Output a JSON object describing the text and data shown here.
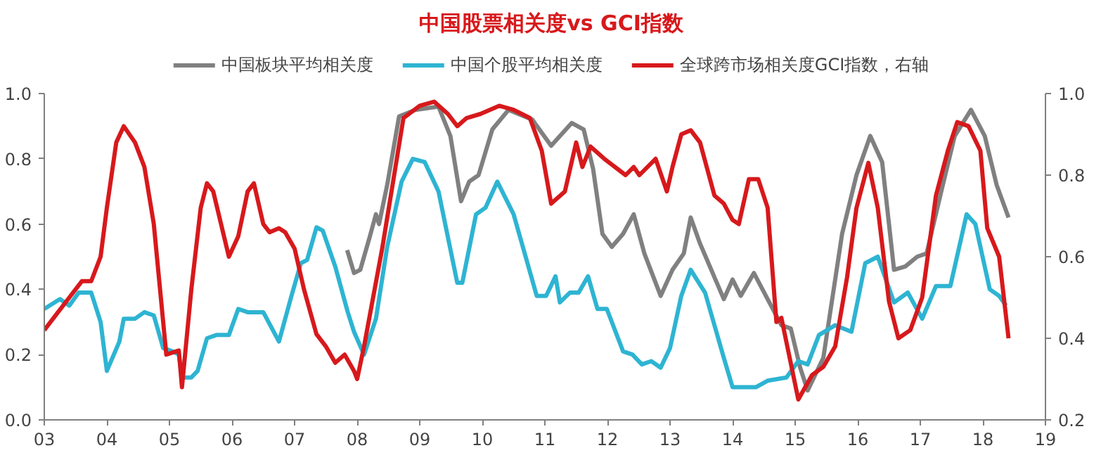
{
  "chart_data": {
    "type": "line",
    "title": "中国股票相关度vs GCI指数",
    "xlim": [
      2003,
      2019
    ],
    "xticks": [
      {
        "value": 2003,
        "label": "03"
      },
      {
        "value": 2004,
        "label": "04"
      },
      {
        "value": 2005,
        "label": "05"
      },
      {
        "value": 2006,
        "label": "06"
      },
      {
        "value": 2007,
        "label": "07"
      },
      {
        "value": 2008,
        "label": "08"
      },
      {
        "value": 2009,
        "label": "09"
      },
      {
        "value": 2010,
        "label": "10"
      },
      {
        "value": 2011,
        "label": "11"
      },
      {
        "value": 2012,
        "label": "12"
      },
      {
        "value": 2013,
        "label": "13"
      },
      {
        "value": 2014,
        "label": "14"
      },
      {
        "value": 2015,
        "label": "15"
      },
      {
        "value": 2016,
        "label": "16"
      },
      {
        "value": 2017,
        "label": "17"
      },
      {
        "value": 2018,
        "label": "18"
      },
      {
        "value": 2019,
        "label": "19"
      }
    ],
    "ylim": [
      0,
      1
    ],
    "yticks": [
      {
        "value": 0,
        "label": "0.0"
      },
      {
        "value": 0.2,
        "label": "0.2"
      },
      {
        "value": 0.4,
        "label": "0.4"
      },
      {
        "value": 0.6,
        "label": "0.6"
      },
      {
        "value": 0.8,
        "label": "0.8"
      },
      {
        "value": 1,
        "label": "1.0"
      }
    ],
    "y2lim": [
      0.2,
      1
    ],
    "y2ticks": [
      0.2,
      0.4,
      0.6,
      0.8,
      {
        "value": 1,
        "label": "1.0"
      }
    ],
    "legend": "top",
    "grid": false,
    "marker": "none",
    "line_style": "solid",
    "series": [
      {
        "name": "中国板块平均相关度",
        "color": "#808080",
        "x": [
          2007.84,
          2007.95,
          2008.05,
          2008.2,
          2008.3,
          2008.35,
          2008.48,
          2008.67,
          2008.93,
          2009.3,
          2009.49,
          2009.66,
          2009.79,
          2009.94,
          2010.16,
          2010.42,
          2010.8,
          2011.1,
          2011.43,
          2011.62,
          2011.77,
          2011.92,
          2012.07,
          2012.25,
          2012.42,
          2012.59,
          2012.85,
          2013.04,
          2013.22,
          2013.33,
          2013.48,
          2013.86,
          2014.0,
          2014.13,
          2014.34,
          2014.56,
          2014.78,
          2014.93,
          2015.08,
          2015.2,
          2015.45,
          2015.75,
          2015.98,
          2016.2,
          2016.39,
          2016.58,
          2016.76,
          2016.95,
          2017.1,
          2017.36,
          2017.55,
          2017.81,
          2018.03,
          2018.22,
          2018.41
        ],
        "values": [
          0.52,
          0.45,
          0.46,
          0.56,
          0.63,
          0.6,
          0.72,
          0.93,
          0.95,
          0.96,
          0.87,
          0.67,
          0.73,
          0.75,
          0.89,
          0.95,
          0.92,
          0.84,
          0.91,
          0.89,
          0.77,
          0.57,
          0.53,
          0.57,
          0.63,
          0.51,
          0.38,
          0.46,
          0.51,
          0.62,
          0.54,
          0.37,
          0.43,
          0.38,
          0.45,
          0.37,
          0.29,
          0.28,
          0.16,
          0.09,
          0.19,
          0.57,
          0.75,
          0.87,
          0.79,
          0.46,
          0.47,
          0.5,
          0.51,
          0.72,
          0.87,
          0.95,
          0.87,
          0.72,
          0.62
        ]
      },
      {
        "name": "中国个股平均相关度",
        "color": "#2eb4d2",
        "x": [
          2003.0,
          2003.25,
          2003.4,
          2003.55,
          2003.75,
          2003.9,
          2004.0,
          2004.2,
          2004.27,
          2004.45,
          2004.6,
          2004.75,
          2004.9,
          2005.05,
          2005.15,
          2005.2,
          2005.35,
          2005.45,
          2005.6,
          2005.75,
          2005.95,
          2006.1,
          2006.25,
          2006.5,
          2006.75,
          2006.95,
          2007.1,
          2007.2,
          2007.35,
          2007.45,
          2007.65,
          2007.85,
          2007.95,
          2008.11,
          2008.3,
          2008.48,
          2008.71,
          2008.89,
          2009.08,
          2009.3,
          2009.6,
          2009.68,
          2009.9,
          2010.05,
          2010.24,
          2010.5,
          2010.87,
          2011.02,
          2011.17,
          2011.24,
          2011.4,
          2011.54,
          2011.69,
          2011.84,
          2011.99,
          2012.25,
          2012.4,
          2012.55,
          2012.7,
          2012.85,
          2013.0,
          2013.18,
          2013.33,
          2013.56,
          2013.86,
          2014.0,
          2014.37,
          2014.56,
          2014.86,
          2015.05,
          2015.2,
          2015.38,
          2015.64,
          2015.9,
          2016.12,
          2016.32,
          2016.58,
          2016.8,
          2017.03,
          2017.25,
          2017.48,
          2017.74,
          2017.88,
          2018.11,
          2018.26,
          2018.37
        ],
        "values": [
          0.34,
          0.37,
          0.35,
          0.39,
          0.39,
          0.3,
          0.15,
          0.24,
          0.31,
          0.31,
          0.33,
          0.32,
          0.22,
          0.21,
          0.2,
          0.13,
          0.13,
          0.15,
          0.25,
          0.26,
          0.26,
          0.34,
          0.33,
          0.33,
          0.24,
          0.38,
          0.48,
          0.49,
          0.59,
          0.58,
          0.47,
          0.33,
          0.27,
          0.2,
          0.31,
          0.53,
          0.73,
          0.8,
          0.79,
          0.7,
          0.42,
          0.42,
          0.63,
          0.65,
          0.73,
          0.63,
          0.38,
          0.38,
          0.44,
          0.36,
          0.39,
          0.39,
          0.44,
          0.34,
          0.34,
          0.21,
          0.2,
          0.17,
          0.18,
          0.16,
          0.22,
          0.38,
          0.46,
          0.39,
          0.19,
          0.1,
          0.1,
          0.12,
          0.13,
          0.18,
          0.17,
          0.26,
          0.29,
          0.27,
          0.48,
          0.5,
          0.36,
          0.39,
          0.31,
          0.41,
          0.41,
          0.63,
          0.6,
          0.4,
          0.38,
          0.35
        ]
      },
      {
        "name": "全球跨市场相关度GCI指数，右轴",
        "color": "#d7191c",
        "axis": "y2",
        "x": [
          2003.0,
          2003.2,
          2003.4,
          2003.6,
          2003.75,
          2003.9,
          2004.0,
          2004.15,
          2004.27,
          2004.45,
          2004.6,
          2004.75,
          2004.85,
          2004.95,
          2005.15,
          2005.2,
          2005.35,
          2005.5,
          2005.6,
          2005.7,
          2005.95,
          2006.1,
          2006.25,
          2006.35,
          2006.5,
          2006.6,
          2006.75,
          2006.85,
          2007.0,
          2007.15,
          2007.35,
          2007.5,
          2007.65,
          2007.8,
          2007.95,
          2008.0,
          2008.11,
          2008.4,
          2008.74,
          2009.0,
          2009.23,
          2009.45,
          2009.6,
          2009.75,
          2009.97,
          2010.27,
          2010.5,
          2010.76,
          2010.95,
          2011.1,
          2011.32,
          2011.5,
          2011.6,
          2011.73,
          2011.95,
          2012.29,
          2012.42,
          2012.51,
          2012.77,
          2012.95,
          2013.04,
          2013.18,
          2013.33,
          2013.48,
          2013.71,
          2013.86,
          2014.0,
          2014.1,
          2014.26,
          2014.41,
          2014.56,
          2014.7,
          2014.78,
          2015.05,
          2015.27,
          2015.45,
          2015.64,
          2015.83,
          2015.98,
          2016.17,
          2016.32,
          2016.5,
          2016.65,
          2016.84,
          2017.03,
          2017.25,
          2017.44,
          2017.59,
          2017.77,
          2017.96,
          2018.07,
          2018.26,
          2018.41
        ],
        "values": [
          0.42,
          0.46,
          0.5,
          0.54,
          0.54,
          0.6,
          0.72,
          0.88,
          0.92,
          0.88,
          0.82,
          0.68,
          0.52,
          0.36,
          0.37,
          0.28,
          0.52,
          0.72,
          0.78,
          0.76,
          0.6,
          0.65,
          0.76,
          0.78,
          0.68,
          0.66,
          0.67,
          0.66,
          0.62,
          0.52,
          0.41,
          0.38,
          0.34,
          0.36,
          0.32,
          0.3,
          0.38,
          0.62,
          0.94,
          0.97,
          0.98,
          0.95,
          0.92,
          0.94,
          0.95,
          0.97,
          0.96,
          0.94,
          0.86,
          0.73,
          0.76,
          0.88,
          0.82,
          0.87,
          0.84,
          0.8,
          0.82,
          0.8,
          0.84,
          0.76,
          0.82,
          0.9,
          0.91,
          0.88,
          0.75,
          0.73,
          0.69,
          0.68,
          0.79,
          0.79,
          0.72,
          0.44,
          0.45,
          0.25,
          0.31,
          0.33,
          0.38,
          0.55,
          0.72,
          0.83,
          0.72,
          0.49,
          0.4,
          0.42,
          0.5,
          0.75,
          0.86,
          0.93,
          0.92,
          0.86,
          0.67,
          0.6,
          0.4
        ]
      }
    ]
  }
}
